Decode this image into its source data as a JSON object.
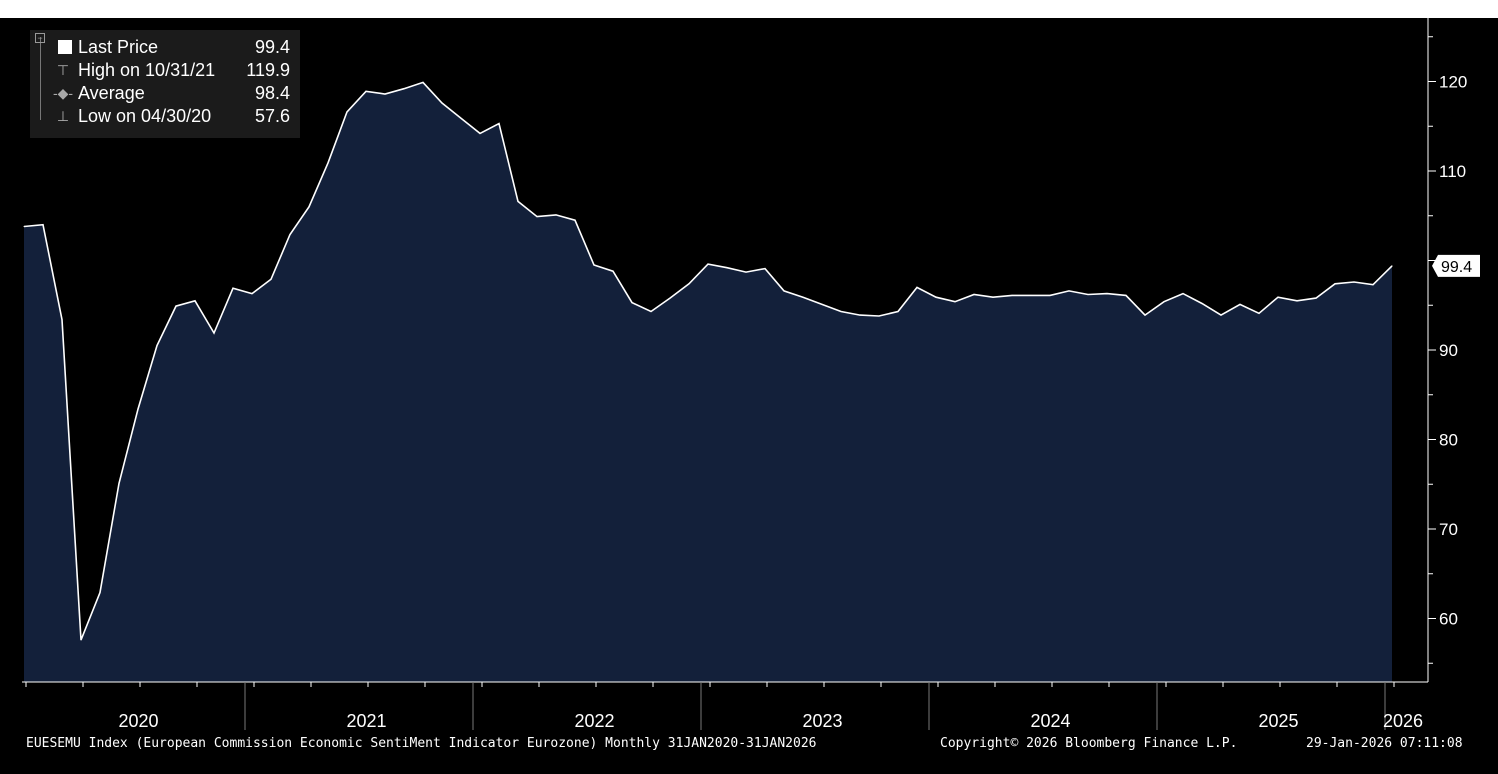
{
  "chart_data": {
    "type": "area",
    "x": [
      "Jan 2020",
      "Feb 2020",
      "Mar 2020",
      "Apr 2020",
      "May 2020",
      "Jun 2020",
      "Jul 2020",
      "Aug 2020",
      "Sep 2020",
      "Oct 2020",
      "Nov 2020",
      "Dec 2020",
      "Jan 2021",
      "Feb 2021",
      "Mar 2021",
      "Apr 2021",
      "May 2021",
      "Jun 2021",
      "Jul 2021",
      "Aug 2021",
      "Sep 2021",
      "Oct 2021",
      "Nov 2021",
      "Dec 2021",
      "Jan 2022",
      "Feb 2022",
      "Mar 2022",
      "Apr 2022",
      "May 2022",
      "Jun 2022",
      "Jul 2022",
      "Aug 2022",
      "Sep 2022",
      "Oct 2022",
      "Nov 2022",
      "Dec 2022",
      "Jan 2023",
      "Feb 2023",
      "Mar 2023",
      "Apr 2023",
      "May 2023",
      "Jun 2023",
      "Jul 2023",
      "Aug 2023",
      "Sep 2023",
      "Oct 2023",
      "Nov 2023",
      "Dec 2023",
      "Jan 2024",
      "Feb 2024",
      "Mar 2024",
      "Apr 2024",
      "May 2024",
      "Jun 2024",
      "Jul 2024",
      "Aug 2024",
      "Sep 2024",
      "Oct 2024",
      "Nov 2024",
      "Dec 2024",
      "Jan 2025",
      "Feb 2025",
      "Mar 2025",
      "Apr 2025",
      "May 2025",
      "Jun 2025",
      "Jul 2025",
      "Aug 2025",
      "Sep 2025",
      "Oct 2025",
      "Nov 2025",
      "Dec 2025",
      "Jan 2026"
    ],
    "series": [
      {
        "values": [
          103.8,
          104.0,
          93.4,
          57.6,
          62.9,
          75.1,
          83.4,
          90.5,
          94.9,
          95.5,
          91.9,
          96.9,
          96.3,
          97.9,
          102.9,
          106.0,
          110.9,
          116.6,
          118.9,
          118.6,
          119.2,
          119.9,
          117.6,
          115.9,
          114.2,
          115.3,
          106.6,
          104.9,
          105.1,
          104.5,
          99.5,
          98.8,
          95.3,
          94.3,
          95.8,
          97.4,
          99.6,
          99.2,
          98.7,
          99.1,
          96.6,
          95.9,
          95.1,
          94.3,
          93.9,
          93.8,
          94.3,
          97.0,
          95.9,
          95.4,
          96.2,
          95.9,
          96.1,
          96.1,
          96.1,
          96.6,
          96.2,
          96.3,
          96.1,
          93.9,
          95.4,
          96.3,
          95.2,
          93.9,
          95.1,
          94.1,
          95.9,
          95.5,
          95.8,
          97.4,
          97.6,
          97.3,
          99.4
        ]
      }
    ],
    "ylim": [
      51.5,
      126
    ],
    "yticks": [
      60,
      70,
      80,
      90,
      110,
      120
    ],
    "last_value_label": "99.4",
    "x_year_labels": [
      "2020",
      "2021",
      "2022",
      "2023",
      "2024",
      "2025",
      "2026"
    ],
    "grid": false,
    "legend_position": "top-left",
    "colors": {
      "background": "#000000",
      "area_fill": "#13203a",
      "line": "#ffffff"
    }
  },
  "legend": {
    "rows": [
      {
        "label": "Last Price",
        "value": "99.4"
      },
      {
        "label": "High on 10/31/21",
        "value": "119.9"
      },
      {
        "label": "Average",
        "value": "98.4"
      },
      {
        "label": "Low on 04/30/20",
        "value": "57.6"
      }
    ]
  },
  "footer": {
    "description": "EUESEMU Index (European Commission Economic SentiMent Indicator Eurozone) Monthly 31JAN2020-31JAN2026",
    "copyright": "Copyright© 2026 Bloomberg Finance L.P.",
    "timestamp": "29-Jan-2026 07:11:08"
  }
}
